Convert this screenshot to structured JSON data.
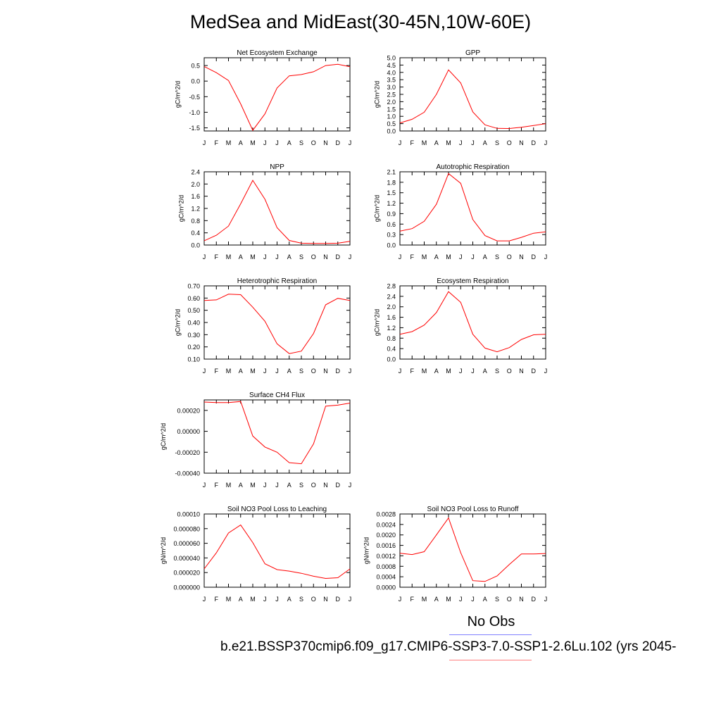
{
  "title": "MedSea and MidEast(30-45N,10W-60E)",
  "legend": {
    "no_obs_label": "No Obs",
    "obs_color": "#8080ff",
    "model_color": "#ff8080"
  },
  "case_name": "b.e21.BSSP370cmip6.f09_g17.CMIP6-SSP3-7.0-SSP1-2.6Lu.102 (yrs 2045-",
  "line_color": "#ff0000",
  "months": [
    "J",
    "F",
    "M",
    "A",
    "M",
    "J",
    "J",
    "A",
    "S",
    "O",
    "N",
    "D",
    "J"
  ],
  "chart_data": [
    {
      "type": "line",
      "title": "Net Ecosystem Exchange",
      "ylabel": "gC/m^2/d",
      "ylim": [
        -1.6,
        0.75
      ],
      "yticks": [
        -1.5,
        -1.0,
        -0.5,
        0.0,
        0.5
      ],
      "ytick_labels": [
        "-1.5",
        "-1.0",
        "-0.5",
        "0.0",
        "0.5"
      ],
      "values": [
        0.47,
        0.27,
        0.02,
        -0.73,
        -1.58,
        -1.05,
        -0.22,
        0.17,
        0.21,
        0.3,
        0.5,
        0.54,
        0.46
      ]
    },
    {
      "type": "line",
      "title": "GPP",
      "ylabel": "gC/m^2/d",
      "ylim": [
        0.0,
        5.0
      ],
      "yticks": [
        0.0,
        0.5,
        1.0,
        1.5,
        2.0,
        2.5,
        3.0,
        3.5,
        4.0,
        4.5,
        5.0
      ],
      "ytick_labels": [
        "0.0",
        "0.5",
        "1.0",
        "1.5",
        "2.0",
        "2.5",
        "3.0",
        "3.5",
        "4.0",
        "4.5",
        "5.0"
      ],
      "values": [
        0.55,
        0.8,
        1.28,
        2.5,
        4.17,
        3.28,
        1.3,
        0.42,
        0.18,
        0.17,
        0.25,
        0.37,
        0.5
      ]
    },
    {
      "type": "line",
      "title": "NPP",
      "ylabel": "gC/m^2/d",
      "ylim": [
        0.0,
        2.4
      ],
      "yticks": [
        0.0,
        0.4,
        0.8,
        1.2,
        1.6,
        2.0,
        2.4
      ],
      "ytick_labels": [
        "0.0",
        "0.4",
        "0.8",
        "1.2",
        "1.6",
        "2.0",
        "2.4"
      ],
      "values": [
        0.14,
        0.32,
        0.62,
        1.35,
        2.12,
        1.5,
        0.57,
        0.15,
        0.06,
        0.05,
        0.05,
        0.06,
        0.12
      ]
    },
    {
      "type": "line",
      "title": "Autotrophic Respiration",
      "ylabel": "gC/m^2/d",
      "ylim": [
        0.0,
        2.1
      ],
      "yticks": [
        0.0,
        0.3,
        0.6,
        0.9,
        1.2,
        1.5,
        1.8,
        2.1
      ],
      "ytick_labels": [
        "0.0",
        "0.3",
        "0.6",
        "0.9",
        "1.2",
        "1.5",
        "1.8",
        "2.1"
      ],
      "values": [
        0.4,
        0.47,
        0.68,
        1.17,
        2.05,
        1.77,
        0.73,
        0.27,
        0.12,
        0.12,
        0.22,
        0.34,
        0.38
      ]
    },
    {
      "type": "line",
      "title": "Heterotrophic Respiration",
      "ylabel": "gC/m^2/d",
      "ylim": [
        0.1,
        0.7
      ],
      "yticks": [
        0.1,
        0.2,
        0.3,
        0.4,
        0.5,
        0.6,
        0.7
      ],
      "ytick_labels": [
        "0.10",
        "0.20",
        "0.30",
        "0.40",
        "0.50",
        "0.60",
        "0.70"
      ],
      "values": [
        0.58,
        0.585,
        0.632,
        0.628,
        0.525,
        0.41,
        0.225,
        0.145,
        0.165,
        0.31,
        0.545,
        0.598,
        0.58
      ]
    },
    {
      "type": "line",
      "title": "Ecosystem Respiration",
      "ylabel": "gC/m^2/d",
      "ylim": [
        0.0,
        2.8
      ],
      "yticks": [
        0.0,
        0.4,
        0.8,
        1.2,
        1.6,
        2.0,
        2.4,
        2.8
      ],
      "ytick_labels": [
        "0.0",
        "0.4",
        "0.8",
        "1.2",
        "1.6",
        "2.0",
        "2.4",
        "2.8"
      ],
      "values": [
        0.95,
        1.05,
        1.3,
        1.78,
        2.58,
        2.17,
        0.95,
        0.42,
        0.28,
        0.44,
        0.75,
        0.93,
        0.95
      ]
    },
    {
      "type": "line",
      "title": "Surface CH4 Flux",
      "ylabel": "gC/m^2/d",
      "ylim": [
        -0.0004,
        0.0003
      ],
      "yticks": [
        -0.0004,
        -0.0002,
        0.0,
        0.0002
      ],
      "ytick_labels": [
        "-0.00040",
        "-0.00020",
        "0.00000",
        "0.00020"
      ],
      "values": [
        0.00028,
        0.000275,
        0.000275,
        0.000285,
        -4.5e-05,
        -0.00015,
        -0.0002,
        -0.0003,
        -0.00031,
        -0.00012,
        0.00024,
        0.00025,
        0.00027
      ]
    },
    {
      "type": "line",
      "title": "Soil NO3 Pool Loss to Leaching",
      "ylabel": "gN/m^2/d",
      "ylim": [
        0.0,
        0.0001
      ],
      "yticks": [
        0.0,
        2e-05,
        4e-05,
        6e-05,
        8e-05,
        0.0001
      ],
      "ytick_labels": [
        "0.000000",
        "0.000020",
        "0.000040",
        "0.000060",
        "0.000080",
        "0.00010"
      ],
      "values": [
        2.5e-05,
        4.7e-05,
        7.4e-05,
        8.5e-05,
        6.1e-05,
        3.2e-05,
        2.4e-05,
        2.2e-05,
        1.9e-05,
        1.5e-05,
        1.2e-05,
        1.3e-05,
        2.5e-05
      ]
    },
    {
      "type": "line",
      "title": "Soil NO3 Pool Loss to Runoff",
      "ylabel": "gN/m^2/d",
      "ylim": [
        0.0,
        0.0028
      ],
      "yticks": [
        0.0,
        0.0004,
        0.0008,
        0.0012,
        0.0016,
        0.002,
        0.0024,
        0.0028
      ],
      "ytick_labels": [
        "0.0000",
        "0.0004",
        "0.0008",
        "0.0012",
        "0.0016",
        "0.0020",
        "0.0024",
        "0.0028"
      ],
      "values": [
        0.0013,
        0.00125,
        0.00136,
        0.002,
        0.00265,
        0.00132,
        0.00025,
        0.00022,
        0.00043,
        0.00087,
        0.00127,
        0.00127,
        0.00129
      ]
    }
  ]
}
